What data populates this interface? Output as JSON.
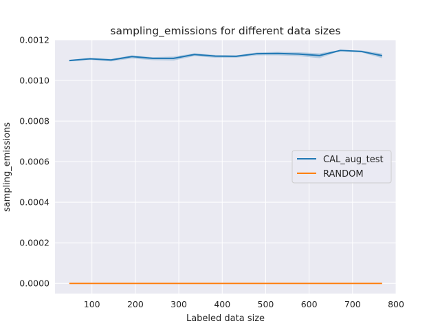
{
  "chart_data": {
    "type": "line",
    "title": "sampling_emissions for different data sizes",
    "xlabel": "Labeled data size",
    "ylabel": "sampling_emissions",
    "xlim": [
      15,
      800
    ],
    "ylim": [
      -5e-05,
      0.0012
    ],
    "xticks": [
      100,
      200,
      300,
      400,
      500,
      600,
      700,
      800
    ],
    "xtick_labels": [
      "100",
      "200",
      "300",
      "400",
      "500",
      "600",
      "700",
      "800"
    ],
    "yticks": [
      0.0,
      0.0002,
      0.0004,
      0.0006,
      0.0008,
      0.001,
      0.0012
    ],
    "ytick_labels": [
      "0.0000",
      "0.0002",
      "0.0004",
      "0.0006",
      "0.0008",
      "0.0010",
      "0.0012"
    ],
    "grid": true,
    "legend_position": "center-right",
    "x": [
      48,
      96,
      144,
      192,
      240,
      288,
      336,
      384,
      432,
      480,
      528,
      576,
      624,
      672,
      720,
      768
    ],
    "series": [
      {
        "name": "CAL_aug_test",
        "color": "#1f77b4",
        "values": [
          0.001098,
          0.001107,
          0.001101,
          0.001118,
          0.001109,
          0.001109,
          0.001128,
          0.00112,
          0.001119,
          0.001132,
          0.001133,
          0.00113,
          0.001123,
          0.001148,
          0.001143,
          0.001122
        ],
        "ci_lower": [
          0.001094,
          0.001101,
          0.001094,
          0.001108,
          0.0011,
          0.001098,
          0.00112,
          0.001112,
          0.001112,
          0.001124,
          0.001124,
          0.00112,
          0.00111,
          0.001146,
          0.001138,
          0.00111
        ],
        "ci_upper": [
          0.001102,
          0.001111,
          0.001106,
          0.001124,
          0.001115,
          0.001118,
          0.001134,
          0.001126,
          0.001124,
          0.001138,
          0.001141,
          0.001139,
          0.001134,
          0.00115,
          0.001148,
          0.001133
        ]
      },
      {
        "name": "RANDOM",
        "color": "#ff7f0e",
        "values": [
          0.0,
          0.0,
          0.0,
          0.0,
          0.0,
          0.0,
          0.0,
          0.0,
          0.0,
          0.0,
          0.0,
          0.0,
          0.0,
          0.0,
          0.0,
          0.0
        ]
      }
    ]
  }
}
